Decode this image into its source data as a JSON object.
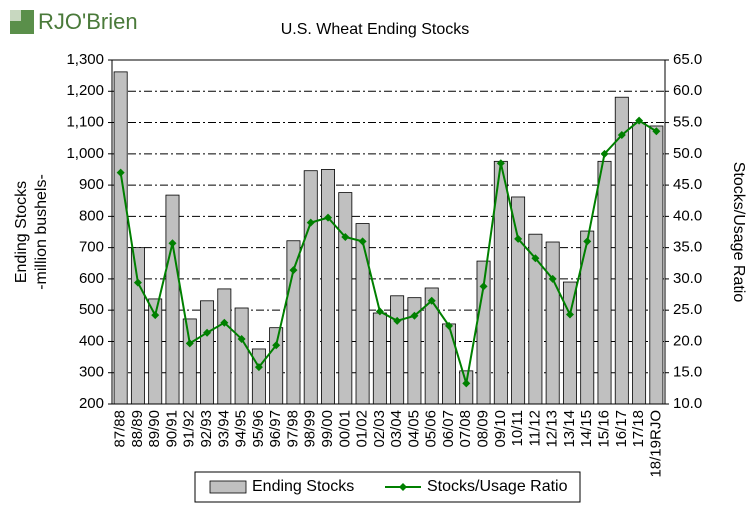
{
  "logo": "RJO'Brien",
  "chart_data": {
    "type": "bar",
    "title": "U.S. Wheat Ending Stocks",
    "ylabel": [
      "Ending Stocks",
      "-million bushels-"
    ],
    "y2label": "Stocks/Usage Ratio",
    "categories": [
      "87/88",
      "88/89",
      "89/90",
      "90/91",
      "91/92",
      "92/93",
      "93/94",
      "94/95",
      "95/96",
      "96/97",
      "97/98",
      "98/99",
      "99/00",
      "00/01",
      "01/02",
      "02/03",
      "03/04",
      "04/05",
      "05/06",
      "06/07",
      "07/08",
      "08/09",
      "09/10",
      "10/11",
      "11/12",
      "12/13",
      "13/14",
      "14/15",
      "15/16",
      "16/17",
      "17/18",
      "18/19RJO"
    ],
    "series": [
      {
        "name": "Ending Stocks",
        "type": "bar",
        "color": "#c0c0c0",
        "values": [
          1262,
          700,
          536,
          868,
          472,
          530,
          568,
          507,
          376,
          444,
          722,
          946,
          950,
          876,
          777,
          491,
          546,
          540,
          571,
          456,
          306,
          657,
          976,
          862,
          743,
          718,
          590,
          753,
          976,
          1181,
          1100,
          1089
        ]
      },
      {
        "name": "Stocks/Usage Ratio",
        "type": "line",
        "axis": "y2",
        "color": "#008000",
        "values": [
          47.0,
          29.4,
          24.2,
          35.7,
          19.7,
          21.4,
          23.0,
          20.4,
          15.9,
          19.4,
          31.4,
          39.0,
          39.8,
          36.7,
          36.0,
          24.8,
          23.3,
          24.1,
          26.5,
          22.5,
          13.3,
          28.8,
          48.5,
          36.4,
          33.3,
          30.0,
          24.3,
          36.0,
          50.0,
          53.0,
          55.3,
          53.6
        ]
      }
    ],
    "ylim": [
      200,
      1300
    ],
    "yticks": [
      200,
      300,
      400,
      500,
      600,
      700,
      800,
      900,
      {
        "value": 1000,
        "label": "1,000"
      },
      {
        "value": 1100,
        "label": "1,100"
      },
      {
        "value": 1200,
        "label": "1,200"
      },
      {
        "value": 1300,
        "label": "1,300"
      }
    ],
    "y2lim": [
      10,
      65
    ],
    "y2ticks": [
      {
        "value": 10,
        "label": "10.0"
      },
      {
        "value": 15,
        "label": "15.0"
      },
      {
        "value": 20,
        "label": "20.0"
      },
      {
        "value": 25,
        "label": "25.0"
      },
      {
        "value": 30,
        "label": "30.0"
      },
      {
        "value": 35,
        "label": "35.0"
      },
      {
        "value": 40,
        "label": "40.0"
      },
      {
        "value": 45,
        "label": "45.0"
      },
      {
        "value": 50,
        "label": "50.0"
      },
      {
        "value": 55,
        "label": "55.0"
      },
      {
        "value": 60,
        "label": "60.0"
      },
      {
        "value": 65,
        "label": "65.0"
      }
    ],
    "grid": true
  }
}
